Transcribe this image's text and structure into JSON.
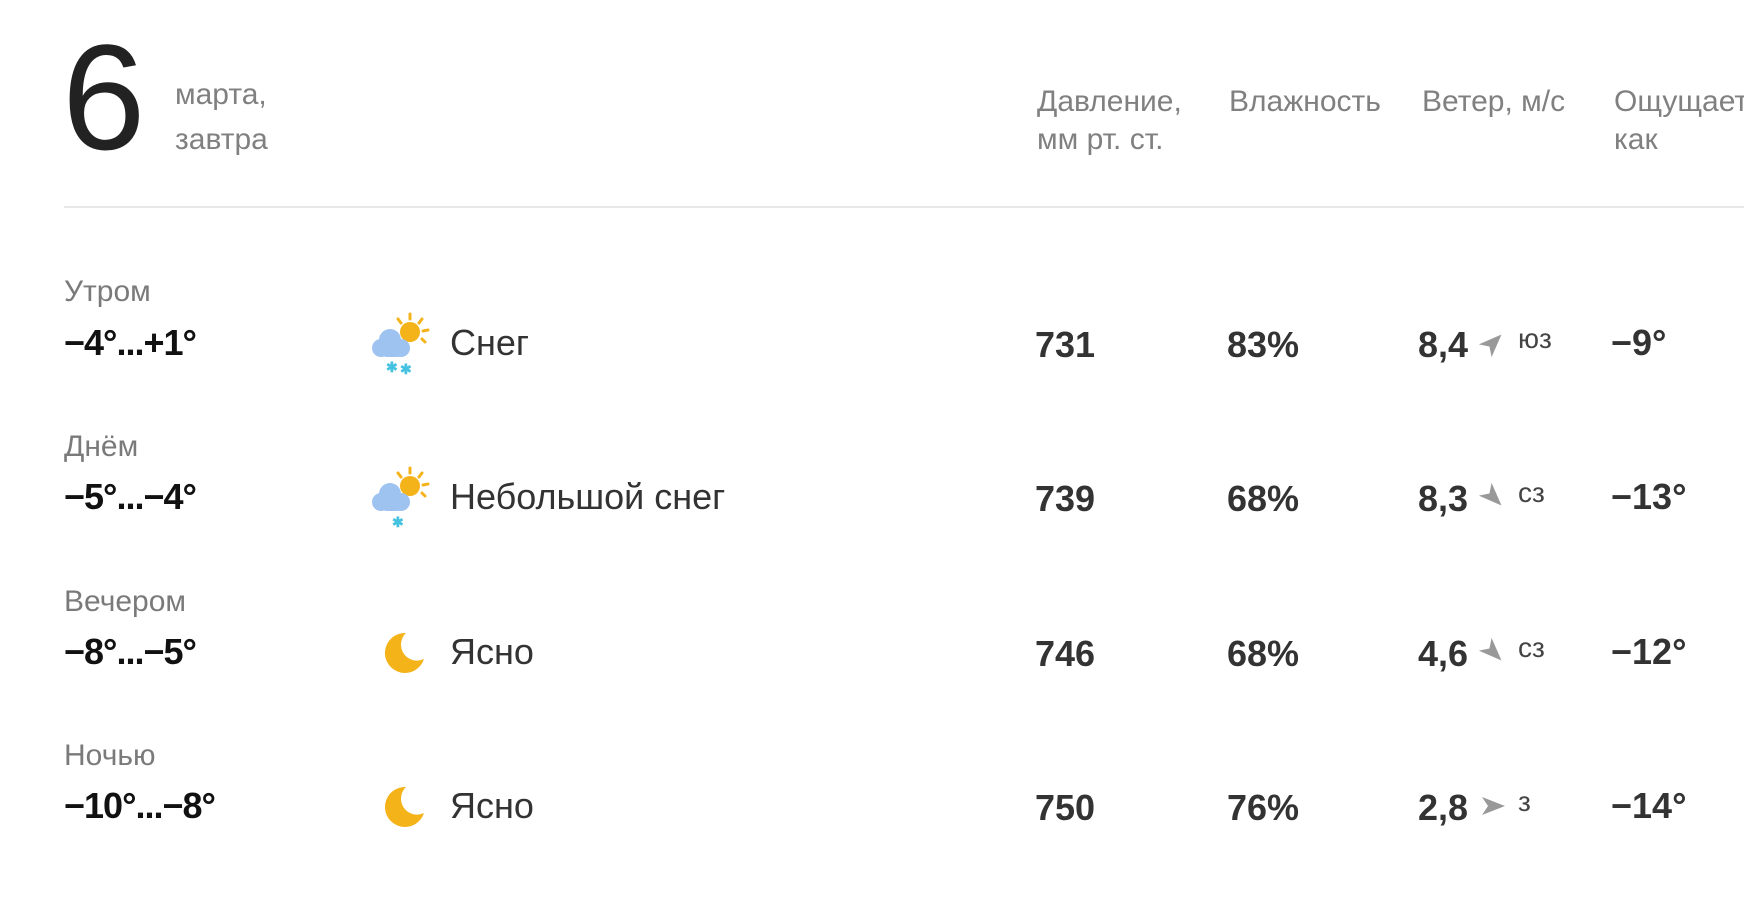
{
  "date": {
    "day": "6",
    "month": "марта,",
    "relative": "завтра"
  },
  "headers": {
    "pressure": [
      "Давление,",
      "мм рт. ст."
    ],
    "humidity": "Влажность",
    "wind": "Ветер, м/с",
    "feels": [
      "Ощущается",
      "как"
    ]
  },
  "rows": [
    {
      "label": "Утром",
      "temp": "−4°...+1°",
      "icon": "partly-cloudy-snow-icon",
      "condition": "Снег",
      "pressure": "731",
      "humidity": "83%",
      "wind": "8,4",
      "wind_dir": "юз",
      "feels": "−9°"
    },
    {
      "label": "Днём",
      "temp": "−5°...−4°",
      "icon": "partly-cloudy-light-snow-icon",
      "condition": "Небольшой снег",
      "pressure": "739",
      "humidity": "68%",
      "wind": "8,3",
      "wind_dir": "сз",
      "feels": "−13°"
    },
    {
      "label": "Вечером",
      "temp": "−8°...−5°",
      "icon": "moon-icon",
      "condition": "Ясно",
      "pressure": "746",
      "humidity": "68%",
      "wind": "4,6",
      "wind_dir": "сз",
      "feels": "−12°"
    },
    {
      "label": "Ночью",
      "temp": "−10°...−8°",
      "icon": "moon-icon",
      "condition": "Ясно",
      "pressure": "750",
      "humidity": "76%",
      "wind": "2,8",
      "wind_dir": "з",
      "feels": "−14°"
    }
  ],
  "colors": {
    "sun": "#f5b31a",
    "cloud": "#9ec3f0",
    "snow": "#45c2e0",
    "moon": "#f5b31a",
    "arrow": "#999999"
  }
}
